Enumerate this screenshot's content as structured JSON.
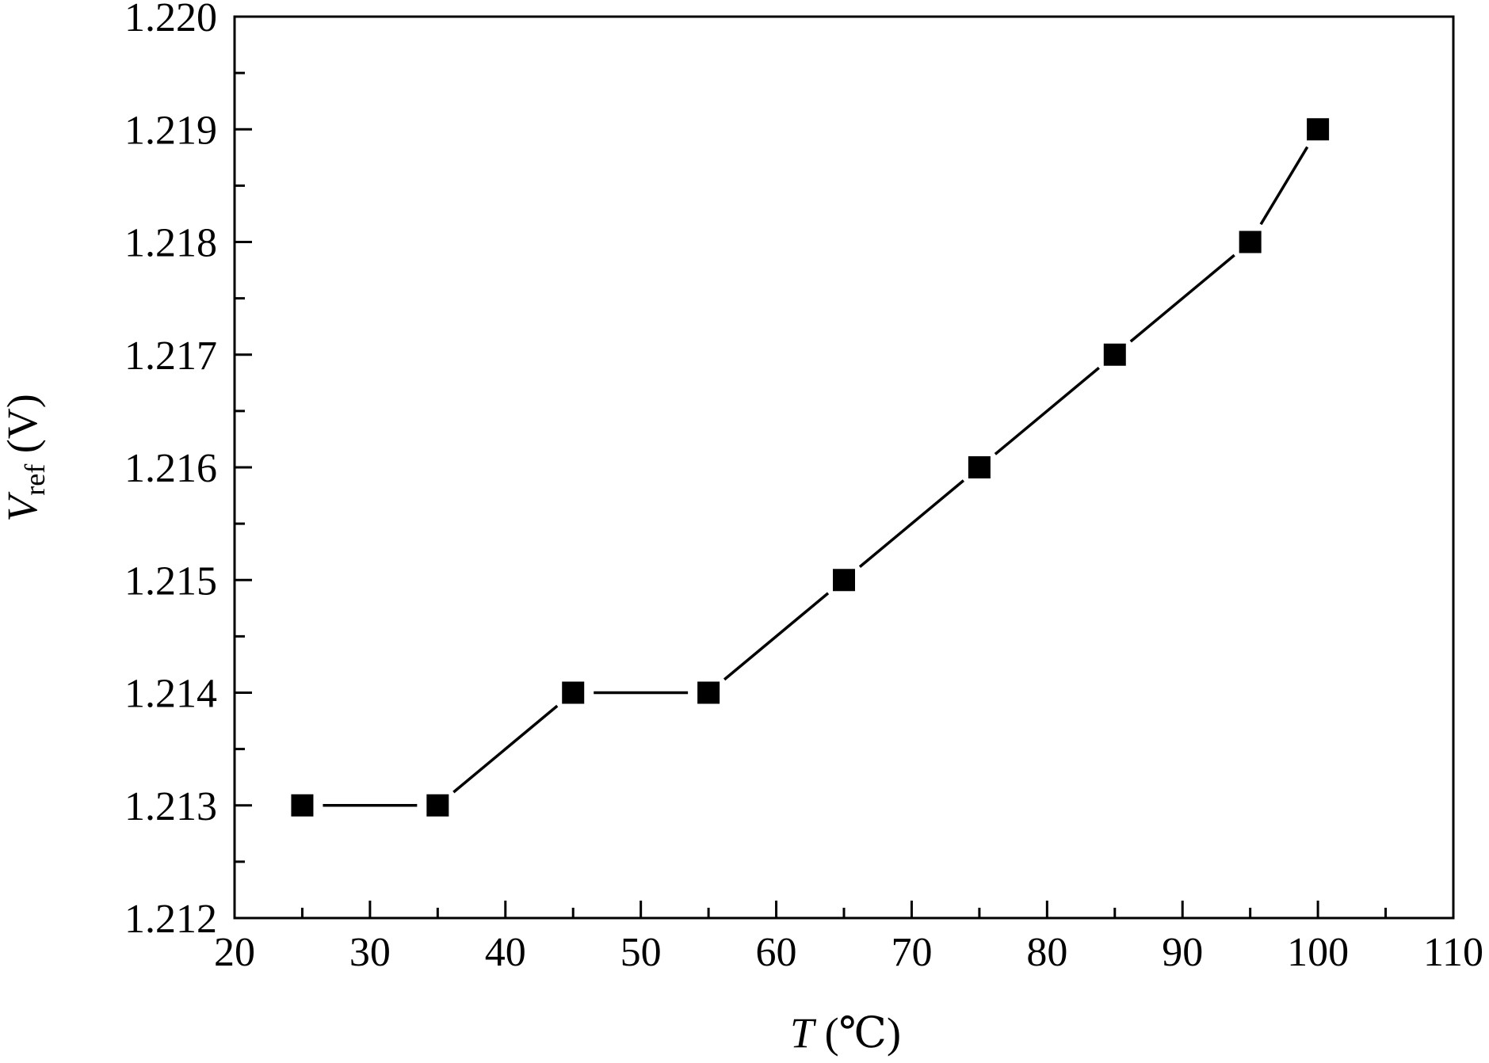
{
  "chart_data": {
    "type": "line",
    "title": "",
    "xlabel_var": "T",
    "xlabel_unit": " (℃)",
    "ylabel_var": "V",
    "ylabel_sub": "ref",
    "ylabel_unit": " (V)",
    "xlim": [
      20,
      110
    ],
    "ylim": [
      1.212,
      1.22
    ],
    "x_ticks": [
      20,
      30,
      40,
      50,
      60,
      70,
      80,
      90,
      100,
      110
    ],
    "x_tick_labels": [
      "20",
      "30",
      "40",
      "50",
      "60",
      "70",
      "80",
      "90",
      "100",
      "110"
    ],
    "y_ticks": [
      1.212,
      1.213,
      1.214,
      1.215,
      1.216,
      1.217,
      1.218,
      1.219,
      1.22
    ],
    "y_tick_labels": [
      "1.212",
      "1.213",
      "1.214",
      "1.215",
      "1.216",
      "1.217",
      "1.218",
      "1.219",
      "1.220"
    ],
    "grid": false,
    "legend": "none",
    "series": [
      {
        "marker": "square",
        "color": "#000000",
        "x": [
          25,
          35,
          45,
          55,
          65,
          75,
          85,
          95,
          100
        ],
        "y": [
          1.213,
          1.213,
          1.214,
          1.214,
          1.215,
          1.216,
          1.217,
          1.218,
          1.219
        ]
      }
    ]
  }
}
